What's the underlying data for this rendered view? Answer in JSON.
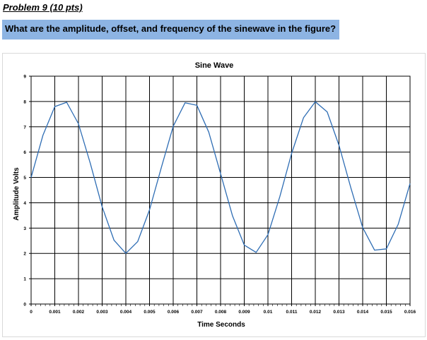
{
  "header": {
    "problem_label": "Problem 9 (10 pts)",
    "question": "What are the amplitude, offset, and frequency of the sinewave in the figure?"
  },
  "chart_data": {
    "type": "line",
    "title": "Sine Wave",
    "xlabel": "Time Seconds",
    "ylabel": "Amplitude Volts",
    "xlim": [
      0,
      0.016
    ],
    "ylim": [
      0,
      9
    ],
    "x_ticks": [
      "0",
      "0.001",
      "0.002",
      "0.003",
      "0.004",
      "0.005",
      "0.006",
      "0.007",
      "0.008",
      "0.009",
      "0.01",
      "0.011",
      "0.012",
      "0.013",
      "0.014",
      "0.015",
      "0.016"
    ],
    "y_ticks": [
      "0",
      "1",
      "2",
      "3",
      "4",
      "5",
      "6",
      "7",
      "8",
      "9"
    ],
    "grid": true,
    "series_color": "#2e6db4",
    "series": [
      {
        "x": [
          0,
          0.0005,
          0.001,
          0.0015,
          0.002,
          0.0025,
          0.003,
          0.0035,
          0.004,
          0.0045,
          0.005,
          0.0055,
          0.006,
          0.0065,
          0.007,
          0.0075,
          0.008,
          0.0085,
          0.009,
          0.0095,
          0.01,
          0.0105,
          0.011,
          0.0115,
          0.012,
          0.0125,
          0.013,
          0.0135,
          0.014,
          0.0145,
          0.015,
          0.0155,
          0.016
        ],
        "y": [
          5.0,
          6.67,
          7.8,
          7.97,
          7.12,
          5.55,
          3.84,
          2.52,
          2.0,
          2.47,
          3.72,
          5.4,
          7.02,
          7.95,
          7.85,
          6.79,
          5.15,
          3.49,
          2.33,
          2.04,
          2.74,
          4.24,
          5.95,
          7.36,
          7.99,
          7.59,
          6.27,
          4.59,
          3.02,
          2.13,
          2.18,
          3.15,
          4.76
        ]
      }
    ]
  }
}
